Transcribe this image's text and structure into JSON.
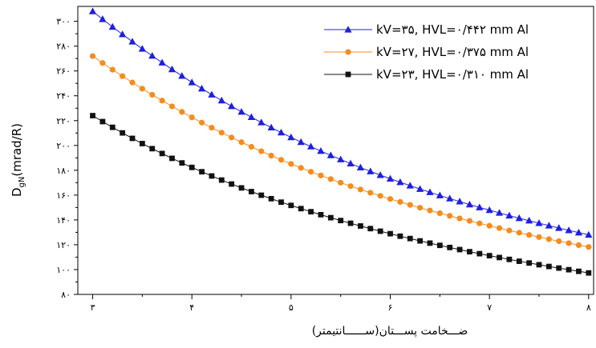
{
  "chart_data": {
    "type": "line",
    "xlabel": "ضـــخامت پســـتان(ســــــانتيمتر)",
    "ylabel_main": "D",
    "ylabel_sub": "gN",
    "ylabel_unit": "(mrad/R)",
    "xlim": [
      2.85,
      8.05
    ],
    "ylim": [
      80,
      312
    ],
    "x_ticks": [
      3,
      4,
      5,
      6,
      7,
      8
    ],
    "x_tick_labels": [
      "۳",
      "۴",
      "۵",
      "۶",
      "۷",
      "۸"
    ],
    "y_ticks": [
      80,
      100,
      120,
      140,
      160,
      180,
      200,
      220,
      240,
      260,
      280,
      300
    ],
    "y_tick_labels": [
      "۸۰",
      "۱۰۰",
      "۱۲۰",
      "۱۴۰",
      "۱۶۰",
      "۱۸۰",
      "۲۰۰",
      "۲۲۰",
      "۲۴۰",
      "۲۶۰",
      "۲۸۰",
      "۳۰۰"
    ],
    "grid": false,
    "legend_position": "top-right",
    "x": [
      3.0,
      3.1,
      3.2,
      3.3,
      3.4,
      3.5,
      3.6,
      3.7,
      3.8,
      3.9,
      4.0,
      4.1,
      4.2,
      4.3,
      4.4,
      4.5,
      4.6,
      4.7,
      4.8,
      4.9,
      5.0,
      5.1,
      5.2,
      5.3,
      5.4,
      5.5,
      5.6,
      5.7,
      5.8,
      5.9,
      6.0,
      6.1,
      6.2,
      6.3,
      6.4,
      6.5,
      6.6,
      6.7,
      6.8,
      6.9,
      7.0,
      7.1,
      7.2,
      7.3,
      7.4,
      7.5,
      7.6,
      7.7,
      7.8,
      7.9,
      8.0
    ],
    "series": [
      {
        "name": "kV=۳۵, HVL=۰/۴۴۲ mm Al",
        "marker": "triangle",
        "color": "#1f1fe0",
        "values": [
          308.0,
          301.7,
          295.5,
          289.5,
          283.6,
          277.8,
          272.2,
          266.7,
          261.3,
          256.0,
          250.8,
          245.8,
          240.9,
          236.2,
          231.6,
          227.1,
          222.8,
          218.5,
          214.4,
          210.4,
          206.5,
          202.7,
          199.1,
          195.5,
          192.0,
          188.7,
          185.4,
          182.2,
          179.1,
          176.1,
          173.2,
          170.4,
          167.6,
          164.9,
          162.3,
          159.7,
          157.2,
          154.8,
          152.4,
          150.1,
          147.9,
          145.7,
          143.5,
          141.4,
          139.4,
          137.4,
          135.4,
          133.5,
          131.6,
          129.8,
          128.0
        ]
      },
      {
        "name": "kV=۲۷, HVL=۰/۳۷۵ mm Al",
        "marker": "circle",
        "color": "#f58c1e",
        "values": [
          272.0,
          266.4,
          261.0,
          255.8,
          250.7,
          245.7,
          240.8,
          236.1,
          231.5,
          227.0,
          222.6,
          218.4,
          214.3,
          210.3,
          206.4,
          202.6,
          198.9,
          195.3,
          191.8,
          188.4,
          185.1,
          181.9,
          178.8,
          175.8,
          172.9,
          170.0,
          167.2,
          164.5,
          161.9,
          159.4,
          156.9,
          154.5,
          152.1,
          149.8,
          147.6,
          145.4,
          143.3,
          141.2,
          139.2,
          137.2,
          135.3,
          133.4,
          131.5,
          129.7,
          127.9,
          126.2,
          124.5,
          122.9,
          121.3,
          119.7,
          118.2
        ]
      },
      {
        "name": "kV=۲۳, HVL=۰/۳۱۰ mm Al",
        "marker": "square",
        "color": "#111111",
        "values": [
          224.0,
          219.2,
          214.6,
          210.1,
          205.7,
          201.5,
          197.4,
          193.5,
          189.6,
          185.9,
          182.3,
          178.8,
          175.4,
          172.1,
          168.9,
          165.8,
          162.8,
          159.9,
          157.1,
          154.3,
          151.7,
          149.1,
          146.6,
          144.2,
          141.8,
          139.5,
          137.3,
          135.1,
          133.0,
          130.9,
          128.9,
          126.9,
          125.0,
          123.1,
          121.3,
          119.5,
          117.8,
          116.1,
          114.4,
          112.8,
          111.2,
          109.7,
          108.2,
          106.7,
          105.3,
          103.9,
          102.5,
          101.2,
          99.9,
          98.6,
          97.3
        ]
      }
    ]
  }
}
